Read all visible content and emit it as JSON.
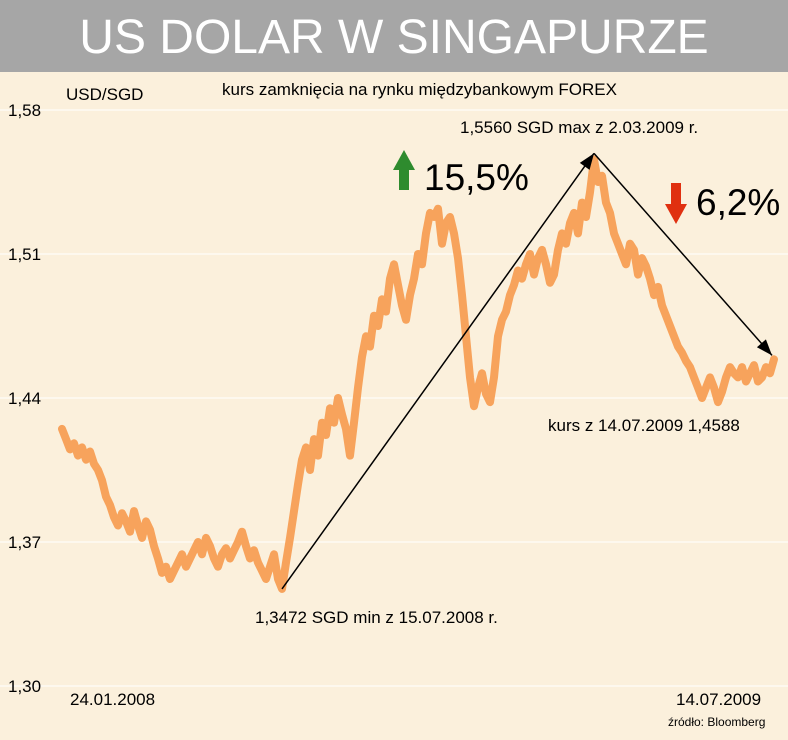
{
  "header": {
    "title": "US DOLAR W SINGAPURZE"
  },
  "chart_data": {
    "type": "line",
    "title": "US DOLAR W SINGAPURZE",
    "subtitle": "kurs zamknięcia na rynku międzybankowym FOREX",
    "ylabel": "USD/SGD",
    "xlabel": "",
    "ylim": [
      1.3,
      1.58
    ],
    "yticks": [
      1.3,
      1.37,
      1.44,
      1.51,
      1.58
    ],
    "ytick_labels": [
      "1,30",
      "1,37",
      "1,44",
      "1,51",
      "1,58"
    ],
    "x_start_label": "24.01.2008",
    "x_end_label": "14.07.2009",
    "grid": true,
    "color": "#f7a35c",
    "source": "źródło: Bloomberg",
    "series": [
      {
        "values": [
          1.425,
          1.42,
          1.415,
          1.418,
          1.412,
          1.416,
          1.41,
          1.414,
          1.408,
          1.405,
          1.4,
          1.392,
          1.388,
          1.382,
          1.378,
          1.384,
          1.38,
          1.375,
          1.385,
          1.378,
          1.372,
          1.38,
          1.376,
          1.368,
          1.362,
          1.355,
          1.358,
          1.352,
          1.356,
          1.36,
          1.364,
          1.358,
          1.362,
          1.366,
          1.37,
          1.364,
          1.372,
          1.368,
          1.362,
          1.358,
          1.364,
          1.367,
          1.362,
          1.366,
          1.37,
          1.375,
          1.368,
          1.362,
          1.366,
          1.36,
          1.356,
          1.352,
          1.358,
          1.364,
          1.352,
          1.3472,
          1.36,
          1.372,
          1.385,
          1.398,
          1.41,
          1.416,
          1.405,
          1.42,
          1.412,
          1.428,
          1.422,
          1.435,
          1.428,
          1.44,
          1.432,
          1.425,
          1.412,
          1.428,
          1.445,
          1.46,
          1.47,
          1.465,
          1.48,
          1.475,
          1.488,
          1.482,
          1.498,
          1.505,
          1.495,
          1.485,
          1.478,
          1.49,
          1.498,
          1.51,
          1.505,
          1.52,
          1.53,
          1.528,
          1.532,
          1.515,
          1.525,
          1.528,
          1.52,
          1.508,
          1.49,
          1.47,
          1.45,
          1.436,
          1.445,
          1.452,
          1.442,
          1.438,
          1.45,
          1.47,
          1.478,
          1.482,
          1.49,
          1.495,
          1.502,
          1.498,
          1.505,
          1.51,
          1.5,
          1.508,
          1.512,
          1.505,
          1.496,
          1.5,
          1.512,
          1.52,
          1.515,
          1.525,
          1.53,
          1.52,
          1.535,
          1.528,
          1.54,
          1.556,
          1.545,
          1.548,
          1.535,
          1.53,
          1.52,
          1.515,
          1.51,
          1.505,
          1.515,
          1.512,
          1.5,
          1.508,
          1.504,
          1.498,
          1.49,
          1.494,
          1.485,
          1.48,
          1.475,
          1.47,
          1.465,
          1.462,
          1.458,
          1.455,
          1.45,
          1.445,
          1.44,
          1.445,
          1.45,
          1.445,
          1.438,
          1.443,
          1.45,
          1.455,
          1.452,
          1.45,
          1.455,
          1.448,
          1.452,
          1.456,
          1.448,
          1.45,
          1.455,
          1.452,
          1.4588
        ]
      }
    ],
    "annotations": [
      {
        "label": "1,3472 SGD min z 15.07.2008 r.",
        "value": 1.3472,
        "date": "15.07.2008"
      },
      {
        "label": "1,5560 SGD max z 2.03.2009 r.",
        "value": 1.556,
        "date": "2.03.2009"
      },
      {
        "label": "kurs z 14.07.2009 1,4588",
        "value": 1.4588,
        "date": "14.07.2009"
      }
    ],
    "changes": [
      {
        "label": "15,5%",
        "direction": "up",
        "color": "#2e8b2e"
      },
      {
        "label": "6,2%",
        "direction": "down",
        "color": "#e03010"
      }
    ]
  }
}
